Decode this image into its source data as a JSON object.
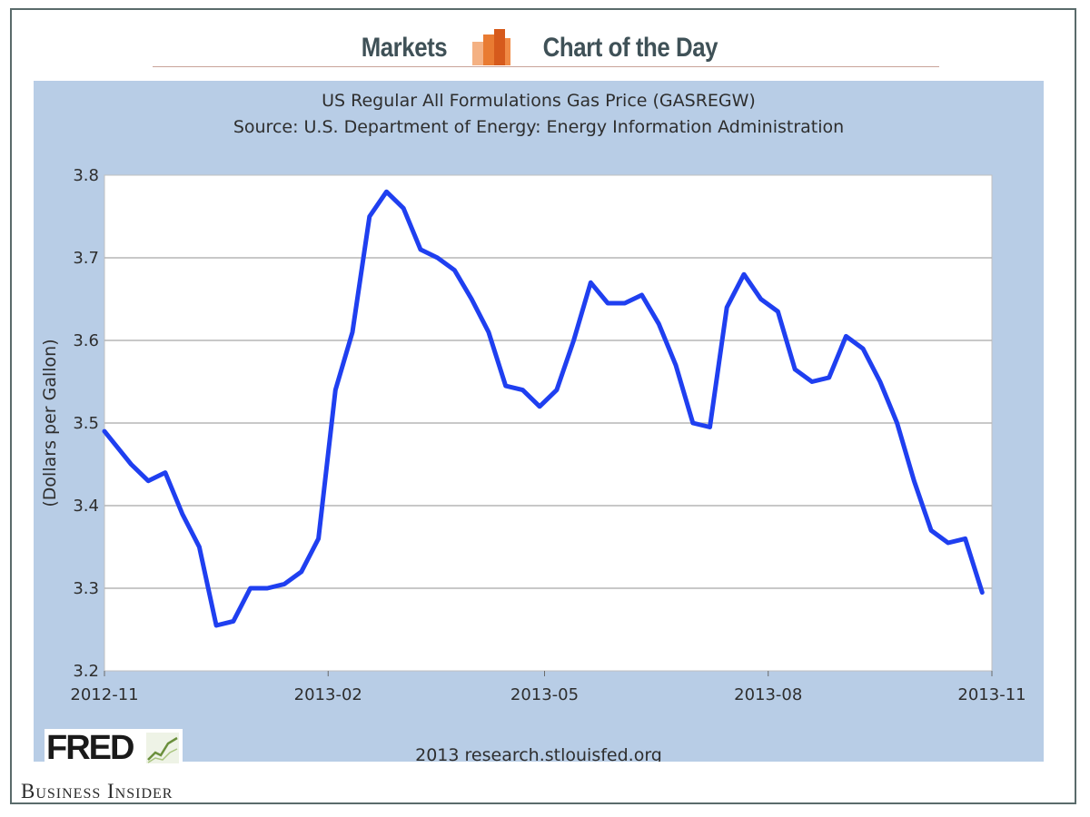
{
  "header": {
    "left_word": "Markets",
    "right_word": "Chart of the Day",
    "icon": "bar-chart-icon"
  },
  "brand": {
    "publisher": "Business Insider",
    "chart_logo": "FRED"
  },
  "colors": {
    "panel_background": "#b8cde6",
    "plot_background": "#ffffff",
    "series_line": "#1f3ff0",
    "header_text": "#3f5157",
    "icon_orange_light": "#f4a261",
    "icon_orange_dark": "#e76f2a"
  },
  "chart_data": {
    "type": "line",
    "title": "US Regular All Formulations Gas Price (GASREGW)",
    "subtitle": "Source: U.S. Department of Energy: Energy Information Administration",
    "xlabel": "",
    "ylabel": "(Dollars per Gallon)",
    "footer": "2013 research.stlouisfed.org",
    "ylim": [
      3.2,
      3.8
    ],
    "yticks": [
      "3.2",
      "3.3",
      "3.4",
      "3.5",
      "3.6",
      "3.7",
      "3.8"
    ],
    "xlim": [
      "2012-11-01",
      "2013-11-01"
    ],
    "xticks": [
      "2012-11",
      "2013-02",
      "2013-05",
      "2013-08",
      "2013-11"
    ],
    "grid": true,
    "series": [
      {
        "x": [
          "2012-11-01",
          "2012-11-12",
          "2012-11-19",
          "2012-11-26",
          "2012-12-03",
          "2012-12-10",
          "2012-12-17",
          "2012-12-24",
          "2012-12-31",
          "2013-01-07",
          "2013-01-14",
          "2013-01-21",
          "2013-01-28",
          "2013-02-04",
          "2013-02-11",
          "2013-02-18",
          "2013-02-25",
          "2013-03-04",
          "2013-03-11",
          "2013-03-18",
          "2013-03-25",
          "2013-04-01",
          "2013-04-08",
          "2013-04-15",
          "2013-04-22",
          "2013-04-29",
          "2013-05-06",
          "2013-05-13",
          "2013-05-20",
          "2013-05-27",
          "2013-06-03",
          "2013-06-10",
          "2013-06-17",
          "2013-06-24",
          "2013-07-01",
          "2013-07-08",
          "2013-07-15",
          "2013-07-22",
          "2013-07-29",
          "2013-08-05",
          "2013-08-12",
          "2013-08-19",
          "2013-08-26",
          "2013-09-02",
          "2013-09-09",
          "2013-09-16",
          "2013-09-23",
          "2013-09-30",
          "2013-10-07",
          "2013-10-14",
          "2013-10-21",
          "2013-10-28"
        ],
        "values": [
          3.49,
          3.45,
          3.43,
          3.44,
          3.39,
          3.35,
          3.255,
          3.26,
          3.3,
          3.3,
          3.305,
          3.32,
          3.36,
          3.54,
          3.61,
          3.75,
          3.78,
          3.76,
          3.71,
          3.7,
          3.685,
          3.65,
          3.61,
          3.545,
          3.54,
          3.52,
          3.54,
          3.6,
          3.67,
          3.645,
          3.645,
          3.655,
          3.62,
          3.57,
          3.5,
          3.495,
          3.64,
          3.68,
          3.65,
          3.635,
          3.565,
          3.55,
          3.555,
          3.605,
          3.59,
          3.55,
          3.5,
          3.43,
          3.37,
          3.355,
          3.36,
          3.295
        ]
      }
    ]
  }
}
